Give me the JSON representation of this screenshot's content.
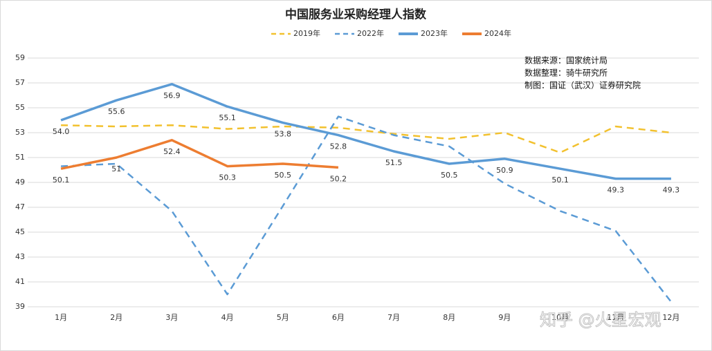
{
  "chart_data": {
    "type": "line",
    "title": "中国服务业采购经理人指数",
    "categories": [
      "1月",
      "2月",
      "3月",
      "4月",
      "5月",
      "6月",
      "7月",
      "8月",
      "9月",
      "10月",
      "11月",
      "12月"
    ],
    "series": [
      {
        "name": "2019年",
        "color": "#f2c12e",
        "dash": true,
        "values": [
          53.6,
          53.5,
          53.6,
          53.3,
          53.5,
          53.4,
          52.9,
          52.5,
          53.0,
          51.4,
          53.5,
          53.0
        ]
      },
      {
        "name": "2022年",
        "color": "#5b9bd5",
        "dash": true,
        "values": [
          50.3,
          50.5,
          46.7,
          40.0,
          47.1,
          54.3,
          52.8,
          51.9,
          48.9,
          46.7,
          45.1,
          39.4
        ]
      },
      {
        "name": "2023年",
        "color": "#5b9bd5",
        "dash": false,
        "values": [
          54.0,
          55.6,
          56.9,
          55.1,
          53.8,
          52.8,
          51.5,
          50.5,
          50.9,
          50.1,
          49.3,
          49.3
        ],
        "value_labels": [
          "54.0",
          "55.6",
          "56.9",
          "55.1",
          "53.8",
          "52.8",
          "51.5",
          "50.5",
          "50.9",
          "50.1",
          "49.3",
          "49.3"
        ]
      },
      {
        "name": "2024年",
        "color": "#ed7d31",
        "dash": false,
        "values": [
          50.1,
          51,
          52.4,
          50.3,
          50.5,
          50.2,
          null,
          null,
          null,
          null,
          null,
          null
        ],
        "value_labels": [
          "50.1",
          "51",
          "52.4",
          "50.3",
          "50.5",
          "50.2",
          null,
          null,
          null,
          null,
          null,
          null
        ]
      }
    ],
    "ylim": [
      39,
      59
    ],
    "yticks": [
      39,
      41,
      43,
      45,
      47,
      49,
      51,
      53,
      55,
      57,
      59
    ],
    "grid": true,
    "annotations": [
      "数据来源：国家统计局",
      "数据整理：骑牛研究所",
      "制图：国证（武汉）证券研究院"
    ],
    "watermark": "知乎 @火星宏观"
  }
}
